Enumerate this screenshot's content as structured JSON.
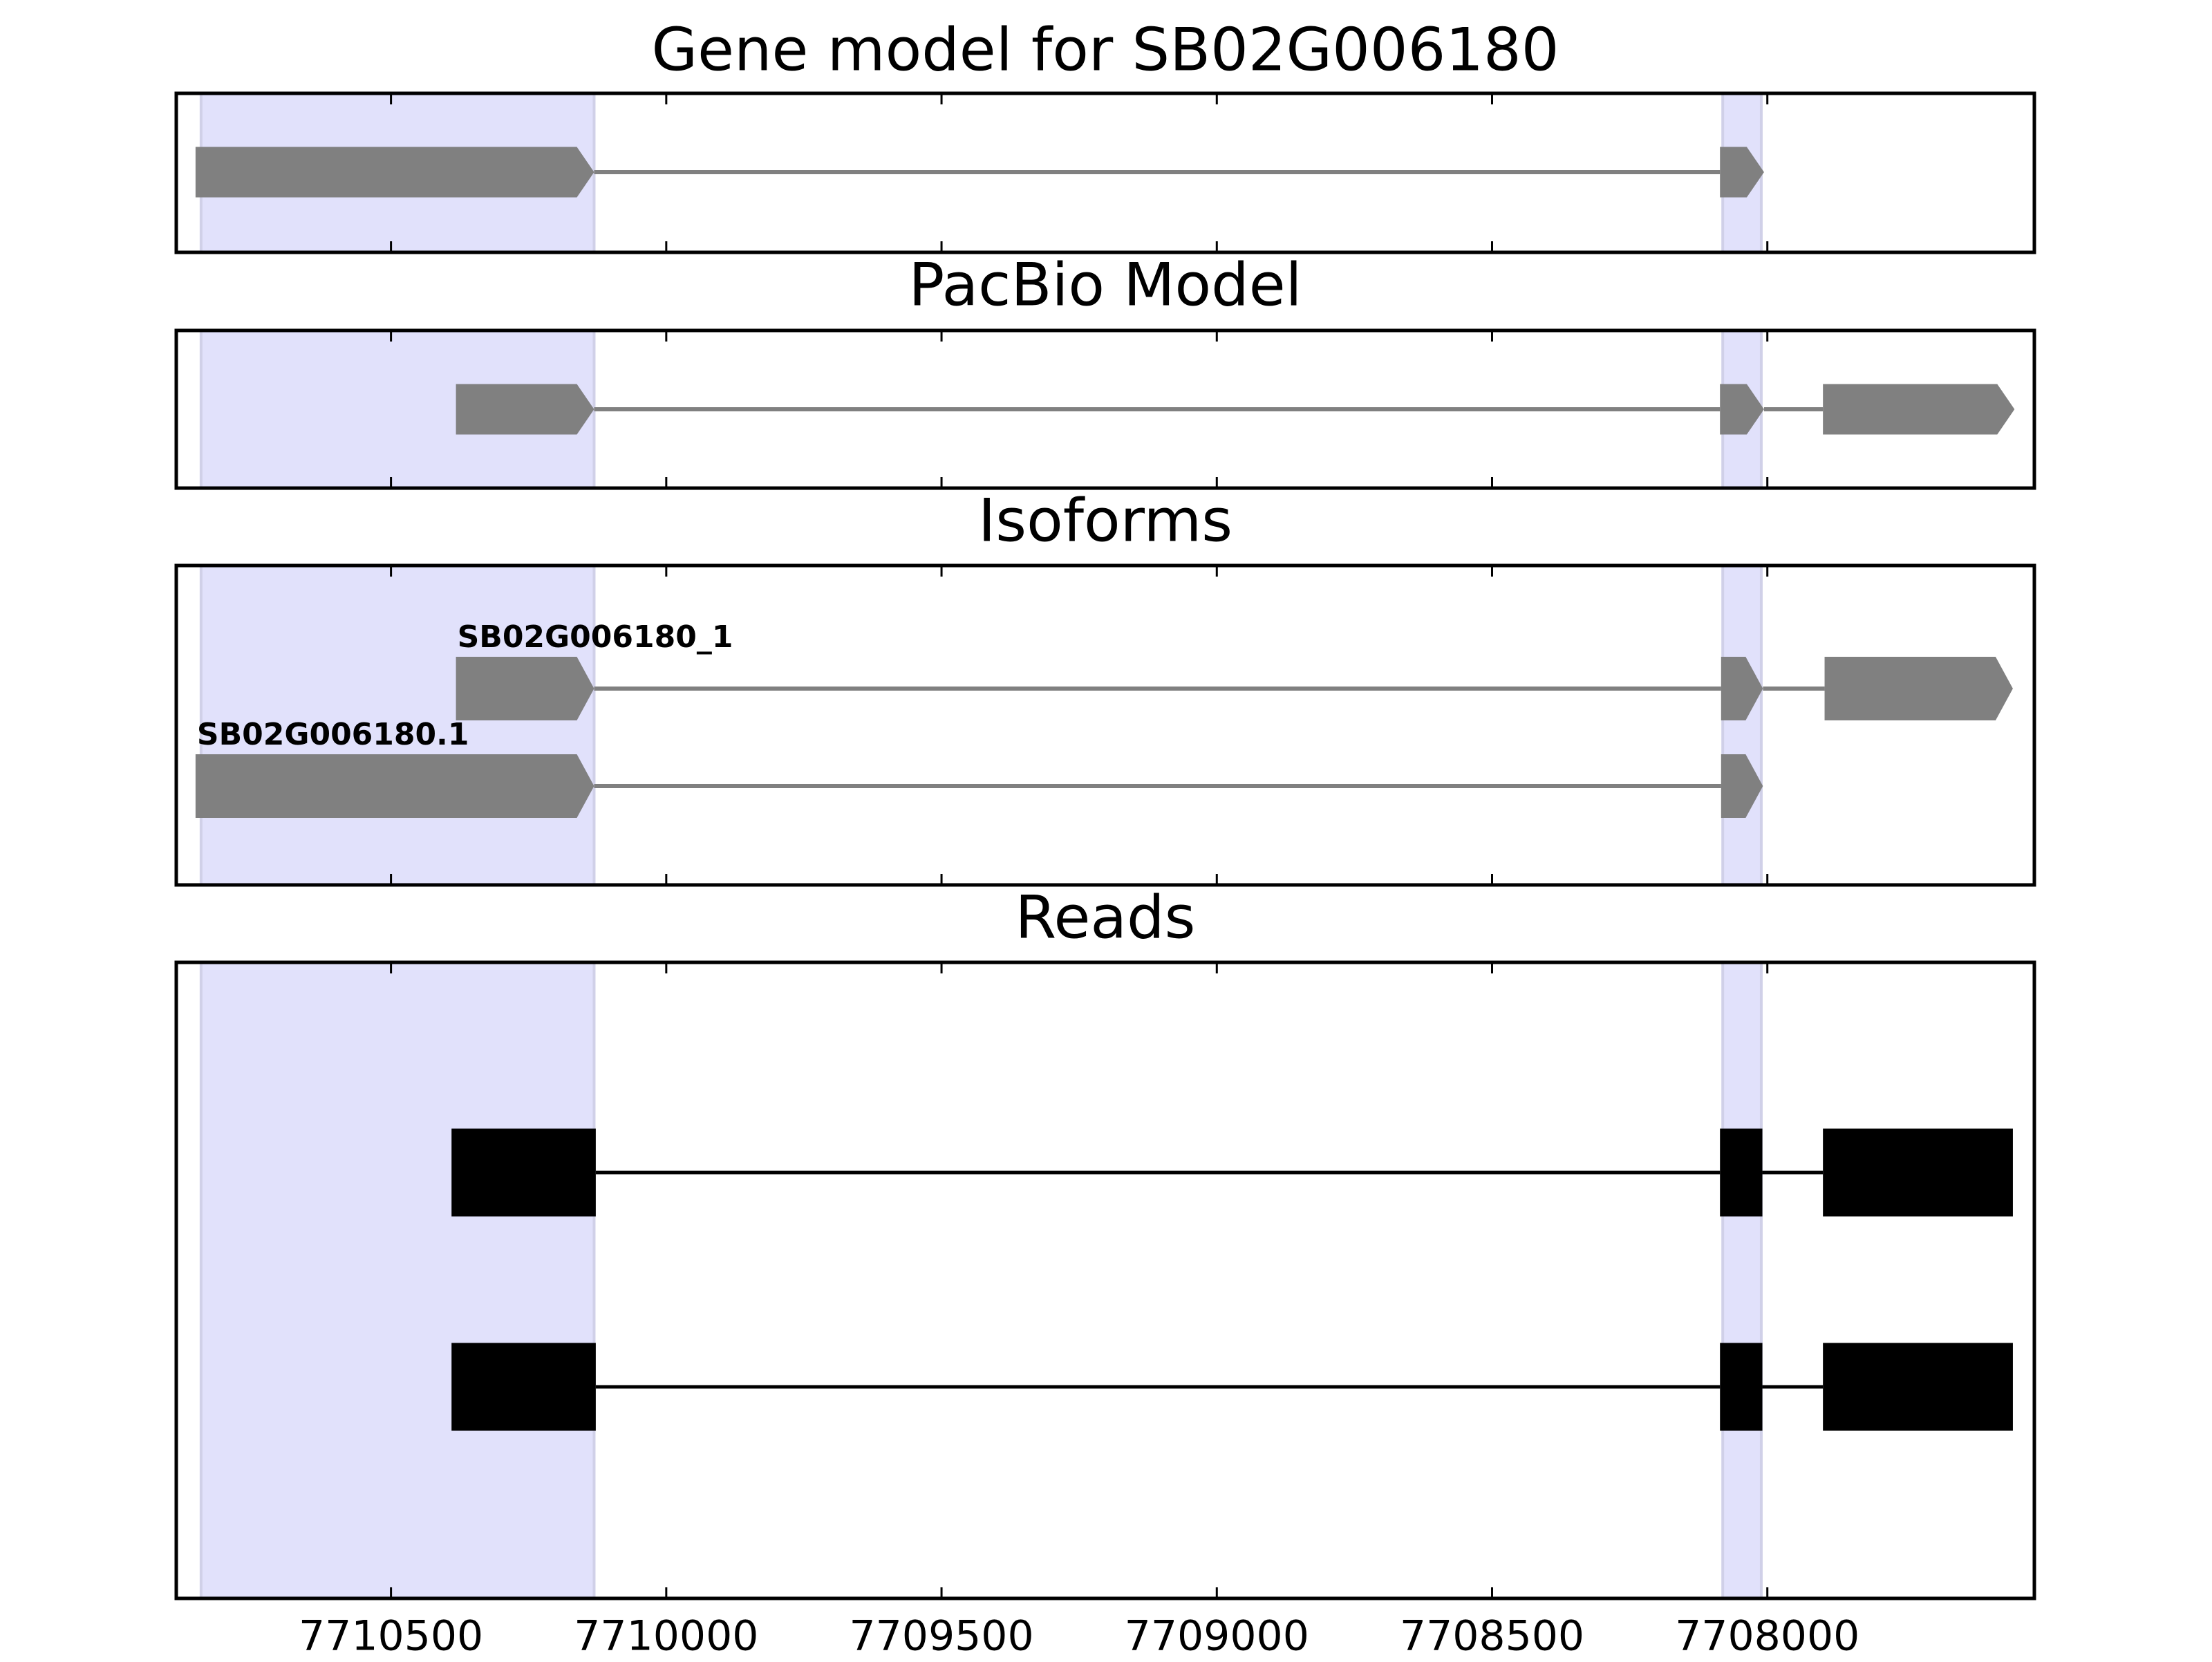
{
  "chart_data": [
    {
      "type": "gene-track",
      "title": "Gene model for SB02G006180",
      "xlim": [
        7710890,
        7707515
      ],
      "xticks": [
        7710500,
        7710000,
        7709500,
        7709000,
        7708500,
        7708000
      ],
      "color": "#808080",
      "highlight_color": "#e1e1fb",
      "highlight_regions": [
        [
          7710845,
          7710131
        ],
        [
          7708081,
          7708011
        ]
      ],
      "transcripts": [
        {
          "exons": [
            [
              7710855,
              7710131
            ],
            [
              7708086,
              7708006
            ]
          ]
        }
      ]
    },
    {
      "type": "gene-track",
      "title": "PacBio Model",
      "xlim": [
        7710890,
        7707515
      ],
      "xticks": [
        7710500,
        7710000,
        7709500,
        7709000,
        7708500,
        7708000
      ],
      "color": "#808080",
      "highlight_color": "#e1e1fb",
      "highlight_regions": [
        [
          7710845,
          7710131
        ],
        [
          7708081,
          7708011
        ]
      ],
      "transcripts": [
        {
          "exons": [
            [
              7710382,
              7710131
            ],
            [
              7708086,
              7708006
            ],
            [
              7707899,
              7707551
            ]
          ]
        }
      ]
    },
    {
      "type": "gene-track",
      "title": "Isoforms",
      "xlim": [
        7710890,
        7707515
      ],
      "xticks": [
        7710500,
        7710000,
        7709500,
        7709000,
        7708500,
        7708000
      ],
      "color": "#808080",
      "highlight_color": "#e1e1fb",
      "highlight_regions": [
        [
          7710845,
          7710131
        ],
        [
          7708081,
          7708011
        ]
      ],
      "transcripts": [
        {
          "name": "SB02G006180_1",
          "exons": [
            [
              7710382,
              7710131
            ],
            [
              7708084,
              7708008
            ],
            [
              7707896,
              7707554
            ]
          ]
        },
        {
          "name": "SB02G006180.1",
          "exons": [
            [
              7710855,
              7710131
            ],
            [
              7708084,
              7708008
            ]
          ]
        }
      ]
    },
    {
      "type": "read-track",
      "title": "Reads",
      "xlim": [
        7710890,
        7707515
      ],
      "xticks": [
        7710500,
        7710000,
        7709500,
        7709000,
        7708500,
        7708000
      ],
      "color": "#000000",
      "highlight_color": "#e1e1fb",
      "highlight_regions": [
        [
          7710845,
          7710131
        ],
        [
          7708081,
          7708011
        ]
      ],
      "transcripts": [
        {
          "exons": [
            [
              7710390,
              7710128
            ],
            [
              7708086,
              7708009
            ],
            [
              7707899,
              7707554
            ]
          ]
        },
        {
          "exons": [
            [
              7710390,
              7710128
            ],
            [
              7708086,
              7708009
            ],
            [
              7707899,
              7707554
            ]
          ]
        }
      ]
    }
  ]
}
